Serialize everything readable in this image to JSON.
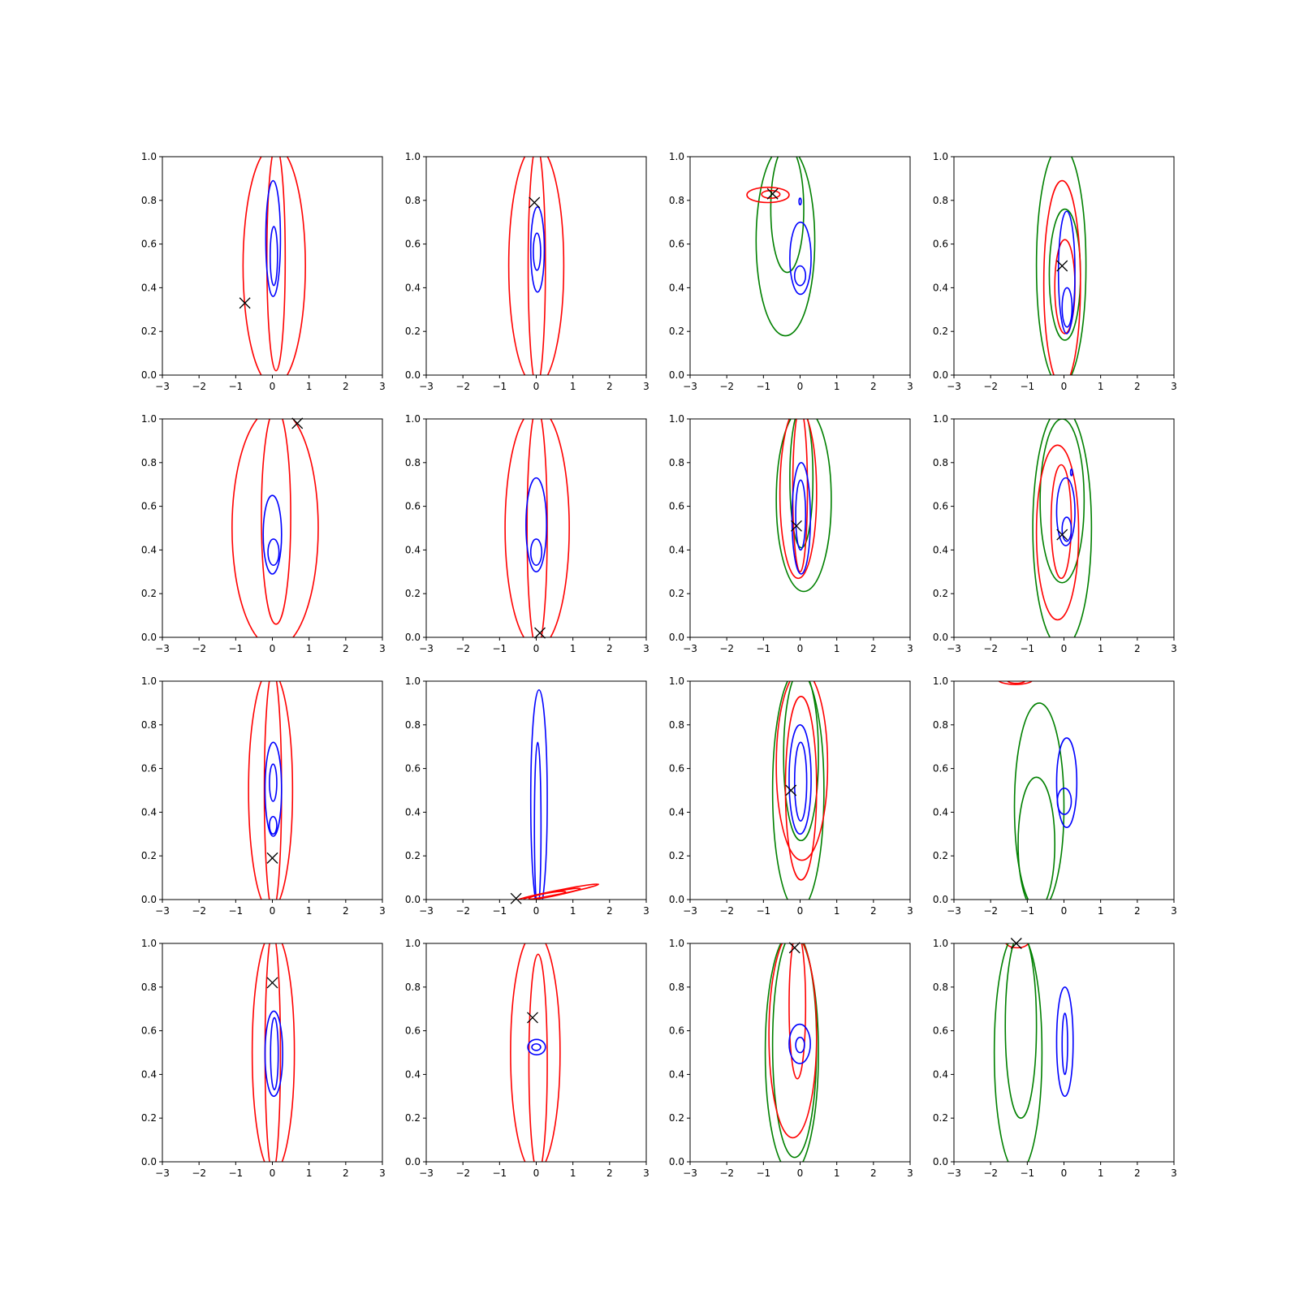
{
  "figure": {
    "name": "contour-grid-4x4"
  },
  "chart_data": {
    "type": "contour-grid",
    "rows": 4,
    "cols": 4,
    "xlim": [
      -3,
      3
    ],
    "ylim": [
      0,
      1
    ],
    "xticks": [
      -3,
      -2,
      -1,
      0,
      1,
      2,
      3
    ],
    "yticks": [
      0.0,
      0.2,
      0.4,
      0.6,
      0.8,
      1.0
    ],
    "xtick_labels": [
      "−3",
      "−2",
      "−1",
      "0",
      "1",
      "2",
      "3"
    ],
    "ytick_labels": [
      "0.0",
      "0.2",
      "0.4",
      "0.6",
      "0.8",
      "1.0"
    ],
    "grid": false,
    "colors": {
      "red": "#ff0000",
      "blue": "#0000ff",
      "green": "#008000",
      "marker": "#000000"
    },
    "panels": [
      {
        "marker": [
          -0.75,
          0.33
        ],
        "contours": [
          {
            "color": "red",
            "x": [
              -0.8,
              0.9
            ],
            "y": [
              -0.05,
              1.05
            ]
          },
          {
            "color": "red",
            "x": [
              -0.15,
              0.35
            ],
            "y": [
              0.02,
              1.05
            ]
          },
          {
            "color": "blue",
            "x": [
              -0.18,
              0.22
            ],
            "y": [
              0.36,
              0.89
            ]
          },
          {
            "color": "blue",
            "x": [
              -0.06,
              0.14
            ],
            "y": [
              0.41,
              0.68
            ]
          }
        ]
      },
      {
        "marker": [
          -0.05,
          0.79
        ],
        "contours": [
          {
            "color": "red",
            "x": [
              -0.75,
              0.75
            ],
            "y": [
              -0.05,
              1.05
            ]
          },
          {
            "color": "red",
            "x": [
              -0.22,
              0.25
            ],
            "y": [
              -0.05,
              1.05
            ]
          },
          {
            "color": "blue",
            "x": [
              -0.15,
              0.22
            ],
            "y": [
              0.38,
              0.77
            ]
          },
          {
            "color": "blue",
            "x": [
              -0.08,
              0.12
            ],
            "y": [
              0.48,
              0.65
            ]
          }
        ]
      },
      {
        "marker": [
          -0.75,
          0.83
        ],
        "contours": [
          {
            "color": "green",
            "x": [
              -1.2,
              0.4
            ],
            "y": [
              0.18,
              1.05
            ]
          },
          {
            "color": "green",
            "x": [
              -0.8,
              0.1
            ],
            "y": [
              0.47,
              1.05
            ]
          },
          {
            "color": "red",
            "x": [
              -1.45,
              -0.3
            ],
            "y": [
              0.79,
              0.86
            ]
          },
          {
            "color": "red",
            "x": [
              -1.05,
              -0.55
            ],
            "y": [
              0.81,
              0.845
            ]
          },
          {
            "color": "blue",
            "x": [
              -0.03,
              0.03
            ],
            "y": [
              0.78,
              0.81
            ]
          },
          {
            "color": "blue",
            "x": [
              -0.28,
              0.3
            ],
            "y": [
              0.37,
              0.7
            ]
          },
          {
            "color": "blue",
            "x": [
              -0.15,
              0.15
            ],
            "y": [
              0.41,
              0.5
            ]
          }
        ]
      },
      {
        "marker": [
          -0.05,
          0.5
        ],
        "contours": [
          {
            "color": "green",
            "x": [
              -0.75,
              0.6
            ],
            "y": [
              -0.05,
              1.05
            ]
          },
          {
            "color": "green",
            "x": [
              -0.4,
              0.45
            ],
            "y": [
              0.16,
              0.76
            ]
          },
          {
            "color": "red",
            "x": [
              -0.55,
              0.45
            ],
            "y": [
              -0.05,
              0.89
            ]
          },
          {
            "color": "red",
            "x": [
              -0.25,
              0.3
            ],
            "y": [
              0.19,
              0.62
            ]
          },
          {
            "color": "blue",
            "x": [
              -0.15,
              0.3
            ],
            "y": [
              0.19,
              0.75
            ]
          },
          {
            "color": "blue",
            "x": [
              -0.05,
              0.22
            ],
            "y": [
              0.22,
              0.4
            ]
          }
        ]
      },
      {
        "marker": [
          0.68,
          0.98
        ],
        "contours": [
          {
            "color": "red",
            "x": [
              -1.1,
              1.25
            ],
            "y": [
              -0.05,
              1.05
            ]
          },
          {
            "color": "red",
            "x": [
              -0.3,
              0.5
            ],
            "y": [
              0.06,
              1.05
            ]
          },
          {
            "color": "blue",
            "x": [
              -0.25,
              0.25
            ],
            "y": [
              0.29,
              0.65
            ]
          },
          {
            "color": "blue",
            "x": [
              -0.12,
              0.18
            ],
            "y": [
              0.33,
              0.45
            ]
          }
        ]
      },
      {
        "marker": [
          0.1,
          0.02
        ],
        "contours": [
          {
            "color": "red",
            "x": [
              -0.85,
              0.9
            ],
            "y": [
              -0.05,
              1.05
            ]
          },
          {
            "color": "red",
            "x": [
              -0.25,
              0.3
            ],
            "y": [
              -0.05,
              1.05
            ]
          },
          {
            "color": "blue",
            "x": [
              -0.28,
              0.28
            ],
            "y": [
              0.3,
              0.73
            ]
          },
          {
            "color": "blue",
            "x": [
              -0.15,
              0.15
            ],
            "y": [
              0.33,
              0.45
            ]
          }
        ]
      },
      {
        "marker": [
          -0.1,
          0.51
        ],
        "contours": [
          {
            "color": "green",
            "x": [
              -0.65,
              0.85
            ],
            "y": [
              0.21,
              1.05
            ]
          },
          {
            "color": "green",
            "x": [
              -0.28,
              0.35
            ],
            "y": [
              0.41,
              1.05
            ]
          },
          {
            "color": "red",
            "x": [
              -0.55,
              0.45
            ],
            "y": [
              0.27,
              1.05
            ]
          },
          {
            "color": "red",
            "x": [
              -0.2,
              0.2
            ],
            "y": [
              0.3,
              1.05
            ]
          },
          {
            "color": "blue",
            "x": [
              -0.22,
              0.28
            ],
            "y": [
              0.29,
              0.8
            ]
          },
          {
            "color": "blue",
            "x": [
              -0.12,
              0.15
            ],
            "y": [
              0.4,
              0.72
            ]
          }
        ]
      },
      {
        "marker": [
          -0.05,
          0.47
        ],
        "contours": [
          {
            "color": "green",
            "x": [
              -0.85,
              0.75
            ],
            "y": [
              -0.05,
              1.05
            ]
          },
          {
            "color": "green",
            "x": [
              -0.65,
              0.55
            ],
            "y": [
              0.25,
              1.0
            ]
          },
          {
            "color": "red",
            "x": [
              -0.75,
              0.4
            ],
            "y": [
              0.08,
              0.88
            ]
          },
          {
            "color": "red",
            "x": [
              -0.35,
              0.2
            ],
            "y": [
              0.27,
              0.79
            ]
          },
          {
            "color": "blue",
            "x": [
              -0.2,
              0.3
            ],
            "y": [
              0.42,
              0.73
            ]
          },
          {
            "color": "blue",
            "x": [
              -0.05,
              0.2
            ],
            "y": [
              0.44,
              0.55
            ]
          },
          {
            "color": "blue",
            "x": [
              0.18,
              0.23
            ],
            "y": [
              0.74,
              0.77
            ]
          }
        ]
      },
      {
        "marker": [
          0.0,
          0.19
        ],
        "contours": [
          {
            "color": "red",
            "x": [
              -0.65,
              0.55
            ],
            "y": [
              -0.05,
              1.05
            ]
          },
          {
            "color": "red",
            "x": [
              -0.22,
              0.25
            ],
            "y": [
              -0.05,
              1.05
            ]
          },
          {
            "color": "blue",
            "x": [
              -0.2,
              0.25
            ],
            "y": [
              0.29,
              0.72
            ]
          },
          {
            "color": "blue",
            "x": [
              -0.08,
              0.12
            ],
            "y": [
              0.45,
              0.62
            ]
          },
          {
            "color": "blue",
            "x": [
              -0.08,
              0.12
            ],
            "y": [
              0.3,
              0.38
            ]
          }
        ]
      },
      {
        "marker": [
          -0.55,
          0.005
        ],
        "contours": [
          {
            "color": "blue",
            "x": [
              -0.15,
              0.3
            ],
            "y": [
              -0.05,
              0.96
            ]
          },
          {
            "color": "blue",
            "x": [
              -0.05,
              0.13
            ],
            "y": [
              -0.05,
              0.72
            ]
          },
          {
            "color": "red",
            "x": [
              -0.55,
              1.7
            ],
            "y": [
              -0.005,
              0.07
            ],
            "tilt": true
          },
          {
            "color": "red",
            "x": [
              -0.35,
              1.2
            ],
            "y": [
              0.0,
              0.05
            ],
            "tilt": true
          },
          {
            "color": "red",
            "x": [
              -0.2,
              0.8
            ],
            "y": [
              0.005,
              0.035
            ],
            "tilt": true
          }
        ]
      },
      {
        "marker": [
          -0.25,
          0.5
        ],
        "contours": [
          {
            "color": "green",
            "x": [
              -0.75,
              0.65
            ],
            "y": [
              -0.05,
              1.05
            ]
          },
          {
            "color": "green",
            "x": [
              -0.45,
              0.5
            ],
            "y": [
              0.27,
              1.05
            ]
          },
          {
            "color": "red",
            "x": [
              -0.65,
              0.75
            ],
            "y": [
              0.18,
              1.05
            ]
          },
          {
            "color": "red",
            "x": [
              -0.4,
              0.45
            ],
            "y": [
              0.09,
              0.93
            ]
          },
          {
            "color": "blue",
            "x": [
              -0.3,
              0.3
            ],
            "y": [
              0.3,
              0.8
            ]
          },
          {
            "color": "blue",
            "x": [
              -0.15,
              0.18
            ],
            "y": [
              0.36,
              0.72
            ]
          }
        ]
      },
      {
        "marker": null,
        "contours": [
          {
            "color": "red",
            "x": [
              -1.8,
              -0.85
            ],
            "y": [
              0.985,
              1.03
            ]
          },
          {
            "color": "red",
            "x": [
              -1.55,
              -1.05
            ],
            "y": [
              0.99,
              1.02
            ]
          },
          {
            "color": "green",
            "x": [
              -1.35,
              0.0
            ],
            "y": [
              -0.05,
              0.9
            ]
          },
          {
            "color": "green",
            "x": [
              -1.25,
              -0.25
            ],
            "y": [
              -0.05,
              0.56
            ]
          },
          {
            "color": "blue",
            "x": [
              -0.2,
              0.35
            ],
            "y": [
              0.33,
              0.74
            ]
          },
          {
            "color": "blue",
            "x": [
              -0.18,
              0.2
            ],
            "y": [
              0.39,
              0.51
            ]
          }
        ]
      },
      {
        "marker": [
          0.0,
          0.82
        ],
        "contours": [
          {
            "color": "red",
            "x": [
              -0.55,
              0.6
            ],
            "y": [
              -0.05,
              1.05
            ]
          },
          {
            "color": "red",
            "x": [
              -0.2,
              0.22
            ],
            "y": [
              -0.05,
              1.05
            ]
          },
          {
            "color": "blue",
            "x": [
              -0.2,
              0.28
            ],
            "y": [
              0.3,
              0.69
            ]
          },
          {
            "color": "blue",
            "x": [
              -0.05,
              0.16
            ],
            "y": [
              0.33,
              0.66
            ]
          }
        ]
      },
      {
        "marker": [
          -0.1,
          0.66
        ],
        "contours": [
          {
            "color": "red",
            "x": [
              -0.7,
              0.65
            ],
            "y": [
              -0.05,
              1.05
            ]
          },
          {
            "color": "red",
            "x": [
              -0.2,
              0.3
            ],
            "y": [
              -0.05,
              0.95
            ]
          },
          {
            "color": "blue",
            "x": [
              -0.23,
              0.25
            ],
            "y": [
              0.49,
              0.56
            ]
          },
          {
            "color": "blue",
            "x": [
              -0.12,
              0.12
            ],
            "y": [
              0.51,
              0.54
            ]
          }
        ]
      },
      {
        "marker": [
          -0.15,
          0.98
        ],
        "contours": [
          {
            "color": "green",
            "x": [
              -0.95,
              0.5
            ],
            "y": [
              -0.05,
              1.05
            ]
          },
          {
            "color": "green",
            "x": [
              -0.75,
              0.45
            ],
            "y": [
              0.02,
              1.05
            ]
          },
          {
            "color": "red",
            "x": [
              -0.85,
              0.45
            ],
            "y": [
              0.11,
              1.05
            ]
          },
          {
            "color": "red",
            "x": [
              -0.3,
              0.15
            ],
            "y": [
              0.38,
              1.05
            ]
          },
          {
            "color": "blue",
            "x": [
              -0.3,
              0.28
            ],
            "y": [
              0.45,
              0.63
            ]
          },
          {
            "color": "blue",
            "x": [
              -0.12,
              0.12
            ],
            "y": [
              0.5,
              0.57
            ]
          }
        ]
      },
      {
        "marker": [
          -1.3,
          1.0
        ],
        "contours": [
          {
            "color": "red",
            "x": [
              -1.6,
              -0.95
            ],
            "y": [
              0.98,
              1.04
            ]
          },
          {
            "color": "green",
            "x": [
              -1.9,
              -0.6
            ],
            "y": [
              -0.05,
              1.05
            ]
          },
          {
            "color": "green",
            "x": [
              -1.6,
              -0.75
            ],
            "y": [
              0.2,
              1.05
            ]
          },
          {
            "color": "blue",
            "x": [
              -0.2,
              0.25
            ],
            "y": [
              0.3,
              0.8
            ]
          },
          {
            "color": "blue",
            "x": [
              -0.05,
              0.1
            ],
            "y": [
              0.4,
              0.68
            ]
          }
        ]
      }
    ]
  }
}
